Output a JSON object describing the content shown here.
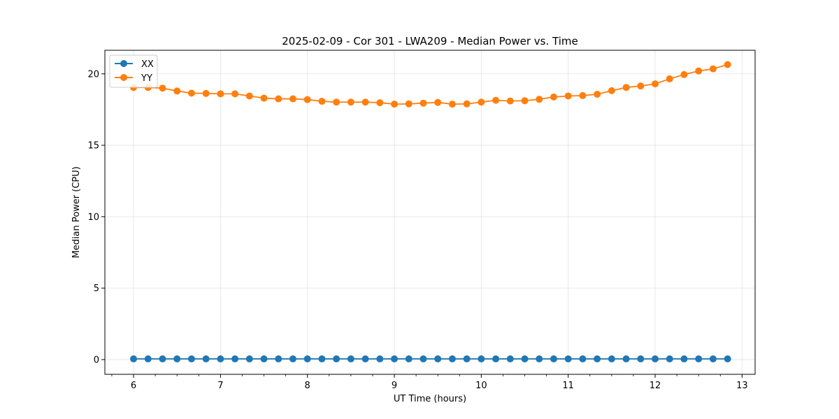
{
  "chart_data": {
    "type": "line",
    "title": "2025-02-09 - Cor 301 - LWA209 - Median Power vs. Time",
    "xlabel": "UT Time (hours)",
    "ylabel": "Median Power (CPU)",
    "xlim": [
      5.67,
      13.15
    ],
    "ylim": [
      -1.03,
      21.65
    ],
    "xticks": [
      6,
      7,
      8,
      9,
      10,
      11,
      12,
      13
    ],
    "xtick_labels": [
      "6",
      "7",
      "8",
      "9",
      "10",
      "11",
      "12",
      "13"
    ],
    "xminor_step": 0.25,
    "yticks": [
      0,
      5,
      10,
      15,
      20
    ],
    "ytick_labels": [
      "0",
      "5",
      "10",
      "15",
      "20"
    ],
    "grid": true,
    "legend_position": "top-left",
    "x": [
      6.0,
      6.1667,
      6.3333,
      6.5,
      6.6667,
      6.8333,
      7.0,
      7.1667,
      7.3333,
      7.5,
      7.6667,
      7.8333,
      8.0,
      8.1667,
      8.3333,
      8.5,
      8.6667,
      8.8333,
      9.0,
      9.1667,
      9.3333,
      9.5,
      9.6667,
      9.8333,
      10.0,
      10.1667,
      10.3333,
      10.5,
      10.6667,
      10.8333,
      11.0,
      11.1667,
      11.3333,
      11.5,
      11.6667,
      11.8333,
      12.0,
      12.1667,
      12.3333,
      12.5,
      12.6667,
      12.8333
    ],
    "series": [
      {
        "name": "XX",
        "color": "#1f77b4",
        "values": [
          0.05,
          0.05,
          0.05,
          0.05,
          0.05,
          0.05,
          0.05,
          0.05,
          0.05,
          0.05,
          0.05,
          0.05,
          0.05,
          0.05,
          0.05,
          0.05,
          0.05,
          0.05,
          0.05,
          0.05,
          0.05,
          0.05,
          0.05,
          0.05,
          0.05,
          0.05,
          0.05,
          0.05,
          0.05,
          0.05,
          0.05,
          0.05,
          0.05,
          0.05,
          0.05,
          0.05,
          0.05,
          0.05,
          0.05,
          0.05,
          0.05,
          0.05
        ]
      },
      {
        "name": "YY",
        "color": "#ff7f0e",
        "values": [
          19.05,
          19.05,
          19.0,
          18.8,
          18.65,
          18.63,
          18.6,
          18.6,
          18.45,
          18.3,
          18.25,
          18.25,
          18.2,
          18.08,
          18.02,
          18.02,
          18.02,
          17.98,
          17.88,
          17.9,
          17.95,
          18.0,
          17.88,
          17.9,
          18.02,
          18.15,
          18.1,
          18.12,
          18.22,
          18.38,
          18.45,
          18.48,
          18.57,
          18.82,
          19.05,
          19.15,
          19.3,
          19.65,
          19.95,
          20.2,
          20.35,
          20.65
        ]
      }
    ]
  }
}
